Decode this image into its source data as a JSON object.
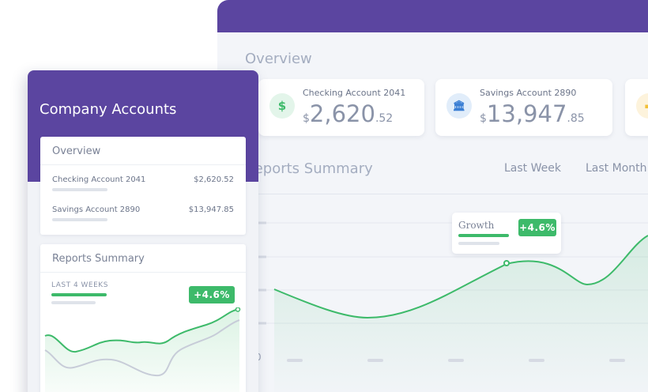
{
  "dashboard": {
    "title": "Overview",
    "accounts": [
      {
        "name": "Checking Account 2041",
        "currency": "$",
        "whole": "2,620",
        "cents": ".52",
        "icon": "dollar-icon",
        "icon_glyph": "$",
        "icon_color": "#3dba6a",
        "icon_bg": "#e3f5ea"
      },
      {
        "name": "Savings Account 2890",
        "currency": "$",
        "whole": "13,947",
        "cents": ".85",
        "icon": "bank-icon",
        "icon_glyph": "🏛",
        "icon_color": "#3b7fd4",
        "icon_bg": "#e1edfa"
      },
      {
        "name": "",
        "currency": "",
        "whole": "",
        "cents": "",
        "icon": "card-icon",
        "icon_glyph": "▬",
        "icon_color": "#f2c037",
        "icon_bg": "#fdf3dc"
      }
    ],
    "reports": {
      "title": "Reports Summary",
      "tabs": [
        "Last Week",
        "Last Month"
      ],
      "axis_zero": "0",
      "tooltip": {
        "label": "Growth",
        "change": "+4.6%"
      }
    }
  },
  "company": {
    "title": "Company Accounts",
    "overview": {
      "title": "Overview",
      "rows": [
        {
          "name": "Checking Account 2041",
          "value": "$2,620.52"
        },
        {
          "name": "Savings Account 2890",
          "value": "$13,947.85"
        }
      ]
    },
    "reports": {
      "title": "Reports Summary",
      "period": "LAST 4 WEEKS",
      "change": "+4.6%"
    }
  },
  "colors": {
    "header": "#5b45a0",
    "accent_green": "#3dba6a",
    "secondary_line": "#c7ccd8"
  }
}
